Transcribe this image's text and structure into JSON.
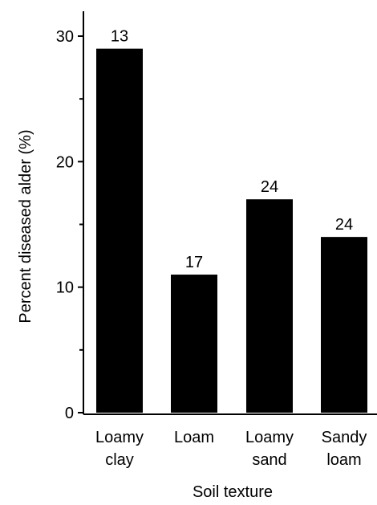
{
  "chart_data": {
    "type": "bar",
    "title": "",
    "xlabel": "Soil texture",
    "ylabel": "Percent diseased alder (%)",
    "ylim": [
      0,
      30
    ],
    "yticks": [
      0,
      10,
      20,
      30
    ],
    "minor_yticks": [
      5,
      15,
      25
    ],
    "grid": false,
    "categories": [
      [
        "Loamy",
        "clay"
      ],
      [
        "Loam"
      ],
      [
        "Loamy",
        "sand"
      ],
      [
        "Sandy",
        "loam"
      ]
    ],
    "values": [
      29,
      11,
      17,
      14
    ],
    "data_labels": [
      "13",
      "17",
      "24",
      "24"
    ],
    "bar_color": "#000000"
  }
}
